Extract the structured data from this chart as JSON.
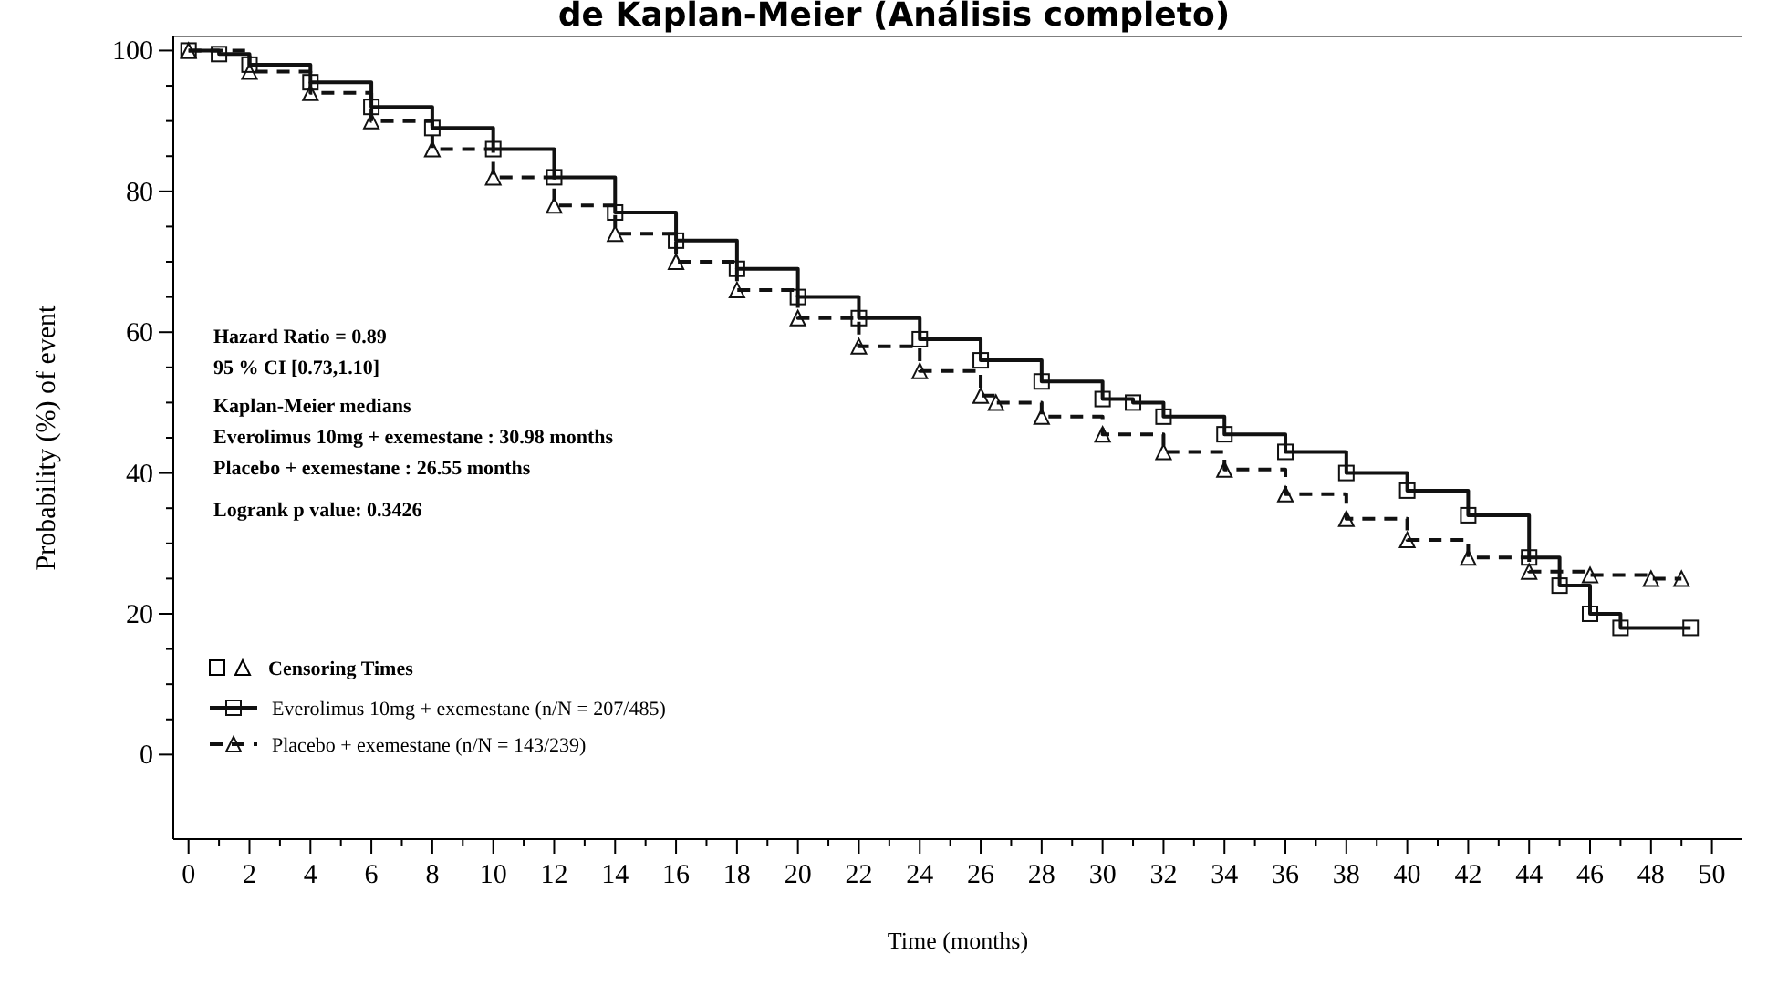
{
  "chart_data": {
    "type": "step",
    "title": "de Kaplan-Meier (Análisis completo)",
    "xlabel": "Time (months)",
    "ylabel": "Probability (%) of event",
    "xlim": [
      -0.5,
      51
    ],
    "ylim": [
      -12,
      102
    ],
    "xticks": [
      0,
      {
        "value": 1,
        "label": null
      },
      2,
      {
        "value": 3,
        "label": null
      },
      4,
      {
        "value": 5,
        "label": null
      },
      6,
      {
        "value": 7,
        "label": null
      },
      8,
      {
        "value": 9,
        "label": null
      },
      10,
      {
        "value": 11,
        "label": null
      },
      12,
      {
        "value": 13,
        "label": null
      },
      14,
      {
        "value": 15,
        "label": null
      },
      16,
      {
        "value": 17,
        "label": null
      },
      18,
      {
        "value": 19,
        "label": null
      },
      20,
      {
        "value": 21,
        "label": null
      },
      22,
      {
        "value": 23,
        "label": null
      },
      24,
      {
        "value": 25,
        "label": null
      },
      26,
      {
        "value": 27,
        "label": null
      },
      28,
      {
        "value": 29,
        "label": null
      },
      30,
      {
        "value": 31,
        "label": null
      },
      32,
      {
        "value": 33,
        "label": null
      },
      34,
      {
        "value": 35,
        "label": null
      },
      36,
      {
        "value": 37,
        "label": null
      },
      38,
      {
        "value": 39,
        "label": null
      },
      40,
      {
        "value": 41,
        "label": null
      },
      42,
      {
        "value": 43,
        "label": null
      },
      44,
      {
        "value": 45,
        "label": null
      },
      46,
      {
        "value": 47,
        "label": null
      },
      48,
      {
        "value": 49,
        "label": null
      },
      50
    ],
    "yticks": [
      0,
      {
        "value": 5,
        "label": null
      },
      {
        "value": 10,
        "label": null
      },
      {
        "value": 15,
        "label": null
      },
      20,
      {
        "value": 25,
        "label": null
      },
      {
        "value": 30,
        "label": null
      },
      {
        "value": 35,
        "label": null
      },
      40,
      {
        "value": 45,
        "label": null
      },
      {
        "value": 50,
        "label": null
      },
      {
        "value": 55,
        "label": null
      },
      60,
      {
        "value": 65,
        "label": null
      },
      {
        "value": 70,
        "label": null
      },
      {
        "value": 75,
        "label": null
      },
      80,
      {
        "value": 85,
        "label": null
      },
      {
        "value": 90,
        "label": null
      },
      {
        "value": 95,
        "label": null
      },
      100
    ],
    "grid": false,
    "legend": "bottom left",
    "series": [
      {
        "name": "Everolimus 10mg + exemestane (n/N = 207/485)",
        "color": "#111111",
        "marker": "square",
        "line_style": "solid",
        "x": [
          0,
          1,
          2,
          4,
          6,
          8,
          10,
          12,
          14,
          16,
          18,
          20,
          22,
          24,
          26,
          28,
          30,
          31,
          32,
          34,
          36,
          38,
          40,
          42,
          44,
          45,
          46,
          47,
          49.3
        ],
        "values": [
          100,
          99.5,
          98,
          95.5,
          92,
          89,
          86,
          82,
          77,
          73,
          69,
          65,
          62,
          59,
          56,
          53,
          50.5,
          50,
          48,
          45.5,
          43,
          40,
          37.5,
          34,
          28,
          24,
          20,
          18,
          18
        ]
      },
      {
        "name": "Placebo + exemestane (n/N = 143/239)",
        "color": "#111111",
        "marker": "triangle",
        "line_style": "dashed",
        "x": [
          0,
          2,
          4,
          6,
          8,
          10,
          12,
          14,
          16,
          18,
          20,
          22,
          24,
          26,
          26.5,
          28,
          30,
          32,
          34,
          36,
          38,
          40,
          42,
          44,
          46,
          48,
          49
        ],
        "values": [
          100,
          97,
          94,
          90,
          86,
          82,
          78,
          74,
          70,
          66,
          62,
          58,
          54.5,
          51,
          50,
          48,
          45.5,
          43,
          40.5,
          37,
          33.5,
          30.5,
          28,
          26,
          25.5,
          25,
          25
        ]
      }
    ],
    "annotations": [
      "Hazard Ratio = 0.89",
      "95 % CI [0.73,1.10]",
      "Kaplan-Meier medians",
      "Everolimus 10mg + exemestane : 30.98 months",
      "Placebo + exemestane : 26.55 months",
      "Logrank p value: 0.3426",
      "Censoring Times"
    ]
  }
}
